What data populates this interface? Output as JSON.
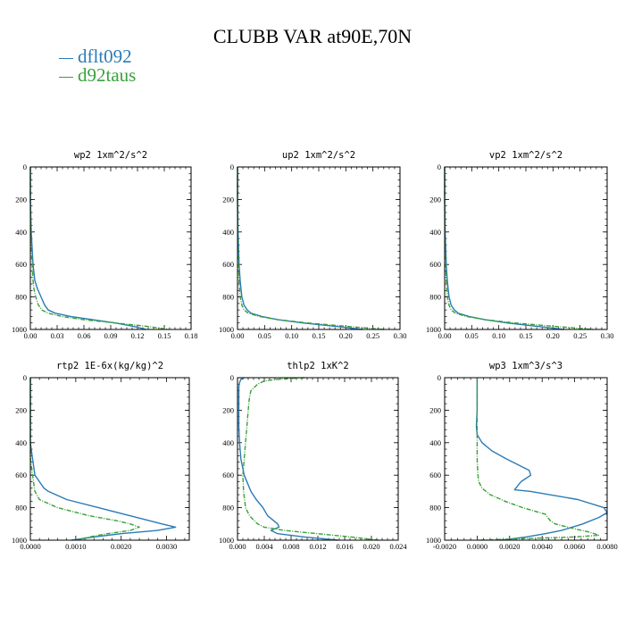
{
  "title": "CLUBB VAR at90E,70N",
  "legend": [
    {
      "label": "dflt092",
      "color": "#2b7bb5"
    },
    {
      "label": "d92taus",
      "color": "#3aa03a"
    }
  ],
  "chart_data": [
    {
      "type": "line",
      "title": "wp2  1xm^2/s^2",
      "xlim": [
        0,
        0.18
      ],
      "ylim": [
        1000,
        0
      ],
      "xticks": [
        "0.00",
        "0.03",
        "0.06",
        "0.09",
        "0.12",
        "0.15",
        "0.18"
      ],
      "yticks": [
        "0",
        "200",
        "400",
        "600",
        "800",
        "1000"
      ],
      "series": [
        {
          "name": "dflt092",
          "y": [
            0,
            200,
            400,
            500,
            600,
            700,
            750,
            800,
            850,
            880,
            900,
            920,
            940,
            960,
            980,
            1000
          ],
          "x": [
            0,
            0,
            0.001,
            0.002,
            0.003,
            0.005,
            0.008,
            0.012,
            0.016,
            0.02,
            0.028,
            0.045,
            0.07,
            0.095,
            0.115,
            0.13
          ]
        },
        {
          "name": "d92taus",
          "y": [
            0,
            200,
            400,
            500,
            600,
            700,
            750,
            800,
            850,
            880,
            900,
            920,
            940,
            960,
            980,
            1000
          ],
          "x": [
            0,
            0,
            0.0005,
            0.001,
            0.002,
            0.003,
            0.004,
            0.006,
            0.009,
            0.013,
            0.02,
            0.035,
            0.06,
            0.095,
            0.13,
            0.155
          ]
        }
      ]
    },
    {
      "type": "line",
      "title": "up2  1xm^2/s^2",
      "xlim": [
        0,
        0.3
      ],
      "ylim": [
        1000,
        0
      ],
      "xticks": [
        "0.00",
        "0.05",
        "0.10",
        "0.15",
        "0.20",
        "0.25",
        "0.30"
      ],
      "yticks": [
        "0",
        "200",
        "400",
        "600",
        "800",
        "1000"
      ],
      "series": [
        {
          "name": "dflt092",
          "y": [
            0,
            200,
            400,
            500,
            600,
            700,
            800,
            850,
            880,
            900,
            920,
            940,
            960,
            980,
            1000
          ],
          "x": [
            0,
            0,
            0.001,
            0.002,
            0.003,
            0.005,
            0.008,
            0.012,
            0.018,
            0.025,
            0.045,
            0.075,
            0.12,
            0.18,
            0.23
          ]
        },
        {
          "name": "d92taus",
          "y": [
            0,
            200,
            400,
            500,
            600,
            700,
            800,
            850,
            880,
            900,
            920,
            940,
            960,
            980,
            1000
          ],
          "x": [
            0,
            0,
            0.0005,
            0.001,
            0.002,
            0.003,
            0.005,
            0.008,
            0.012,
            0.02,
            0.04,
            0.075,
            0.13,
            0.2,
            0.27
          ]
        }
      ]
    },
    {
      "type": "line",
      "title": "vp2  1xm^2/s^2",
      "xlim": [
        0,
        0.3
      ],
      "ylim": [
        1000,
        0
      ],
      "xticks": [
        "0.00",
        "0.05",
        "0.10",
        "0.15",
        "0.20",
        "0.25",
        "0.30"
      ],
      "yticks": [
        "0",
        "200",
        "400",
        "600",
        "800",
        "1000"
      ],
      "series": [
        {
          "name": "dflt092",
          "y": [
            0,
            200,
            400,
            500,
            600,
            700,
            800,
            850,
            880,
            900,
            920,
            940,
            960,
            980,
            1000
          ],
          "x": [
            0,
            0,
            0.001,
            0.002,
            0.003,
            0.005,
            0.008,
            0.012,
            0.018,
            0.025,
            0.045,
            0.075,
            0.115,
            0.17,
            0.22
          ]
        },
        {
          "name": "d92taus",
          "y": [
            0,
            200,
            400,
            500,
            600,
            700,
            800,
            850,
            880,
            900,
            920,
            940,
            960,
            980,
            1000
          ],
          "x": [
            0,
            0,
            0.0005,
            0.001,
            0.002,
            0.003,
            0.005,
            0.008,
            0.012,
            0.02,
            0.04,
            0.075,
            0.13,
            0.2,
            0.275
          ]
        }
      ]
    },
    {
      "type": "line",
      "title": "rtp2  1E-6x(kg/kg)^2",
      "xlim": [
        0,
        0.0035
      ],
      "ylim": [
        1000,
        0
      ],
      "xticks": [
        "0.0000",
        "0.0010",
        "0.0020",
        "0.0030"
      ],
      "xtick_values": [
        0,
        0.001,
        0.002,
        0.003
      ],
      "yticks": [
        "0",
        "200",
        "400",
        "600",
        "800",
        "1000"
      ],
      "series": [
        {
          "name": "dflt092",
          "y": [
            0,
            400,
            500,
            600,
            640,
            680,
            700,
            750,
            800,
            850,
            900,
            920,
            940,
            960,
            980,
            1000
          ],
          "x": [
            0,
            0,
            5e-05,
            0.0001,
            0.0002,
            0.0003,
            0.0004,
            0.0008,
            0.0015,
            0.0022,
            0.0029,
            0.0032,
            0.0028,
            0.002,
            0.0014,
            0.0009
          ]
        },
        {
          "name": "d92taus",
          "y": [
            0,
            500,
            600,
            700,
            750,
            800,
            850,
            880,
            900,
            920,
            940,
            960,
            980,
            1000
          ],
          "x": [
            0,
            0,
            5e-05,
            0.0001,
            0.0002,
            0.0006,
            0.0013,
            0.0019,
            0.0022,
            0.0024,
            0.0022,
            0.0017,
            0.0013,
            0.001
          ]
        }
      ]
    },
    {
      "type": "line",
      "title": "thlp2  1xK^2",
      "xlim": [
        0,
        0.024
      ],
      "ylim": [
        1000,
        0
      ],
      "xticks": [
        "0.000",
        "0.004",
        "0.008",
        "0.012",
        "0.016",
        "0.020",
        "0.024"
      ],
      "yticks": [
        "0",
        "200",
        "400",
        "600",
        "800",
        "1000"
      ],
      "series": [
        {
          "name": "dflt092",
          "y": [
            0,
            10,
            30,
            60,
            100,
            200,
            300,
            400,
            500,
            600,
            650,
            700,
            750,
            800,
            850,
            900,
            920,
            940,
            960,
            980,
            1000
          ],
          "x": [
            0.001,
            0.0005,
            0.0003,
            0.0002,
            0.0002,
            0.0002,
            0.0002,
            0.0003,
            0.0005,
            0.001,
            0.0015,
            0.002,
            0.0028,
            0.0038,
            0.0045,
            0.006,
            0.0062,
            0.005,
            0.006,
            0.01,
            0.015
          ]
        },
        {
          "name": "d92taus",
          "y": [
            0,
            10,
            20,
            40,
            60,
            80,
            120,
            150,
            200,
            300,
            400,
            500,
            600,
            700,
            800,
            850,
            900,
            920,
            940,
            960,
            980,
            1000
          ],
          "x": [
            0.01,
            0.006,
            0.004,
            0.003,
            0.0025,
            0.002,
            0.0018,
            0.0017,
            0.0016,
            0.0014,
            0.0012,
            0.001,
            0.0008,
            0.0009,
            0.0012,
            0.0018,
            0.003,
            0.004,
            0.007,
            0.012,
            0.017,
            0.021
          ]
        }
      ]
    },
    {
      "type": "line",
      "title": "wp3  1xm^3/s^3",
      "xlim": [
        -0.002,
        0.008
      ],
      "ylim": [
        1000,
        0
      ],
      "xticks": [
        "-0.0020",
        "0.0000",
        "0.0020",
        "0.0040",
        "0.0060",
        "0.0080"
      ],
      "xtick_values": [
        -0.002,
        0,
        0.002,
        0.004,
        0.006,
        0.008
      ],
      "yticks": [
        "0",
        "200",
        "400",
        "600",
        "800",
        "1000"
      ],
      "series": [
        {
          "name": "dflt092",
          "y": [
            0,
            100,
            200,
            300,
            350,
            400,
            450,
            500,
            550,
            570,
            600,
            640,
            690,
            700,
            750,
            800,
            830,
            860,
            900,
            940,
            960,
            980,
            1000
          ],
          "x": [
            0,
            0,
            0,
            -5e-05,
            0,
            0.0003,
            0.0009,
            0.0018,
            0.0028,
            0.0032,
            0.0033,
            0.0027,
            0.0023,
            0.0033,
            0.0062,
            0.0078,
            0.008,
            0.0075,
            0.0065,
            0.0052,
            0.0042,
            0.003,
            0.0015
          ]
        },
        {
          "name": "d92taus",
          "y": [
            0,
            100,
            200,
            300,
            400,
            500,
            600,
            640,
            680,
            720,
            760,
            800,
            840,
            880,
            900,
            930,
            950,
            970,
            980,
            990,
            1000
          ],
          "x": [
            0,
            0,
            0,
            0,
            0,
            0,
            5e-05,
            0.0001,
            0.0003,
            0.0008,
            0.0017,
            0.0028,
            0.0042,
            0.0045,
            0.0048,
            0.006,
            0.0069,
            0.0075,
            0.006,
            0.003,
            0
          ]
        }
      ]
    }
  ]
}
